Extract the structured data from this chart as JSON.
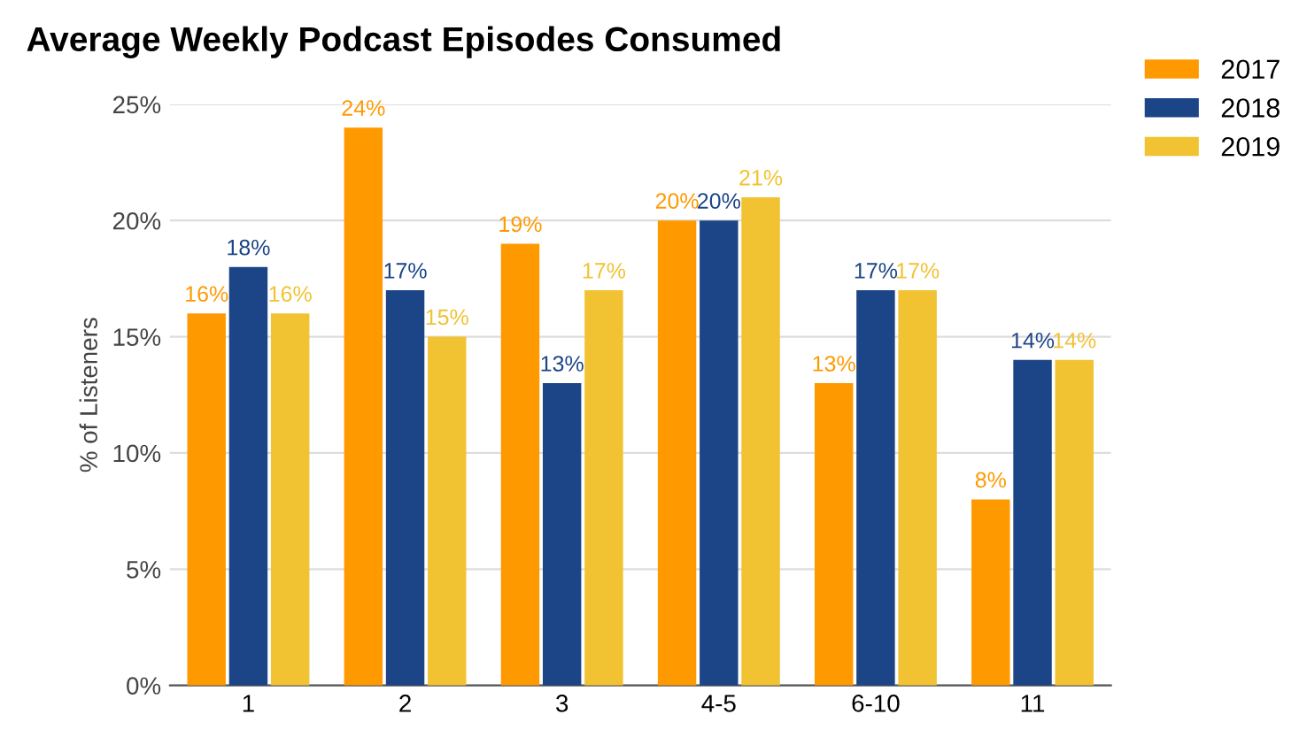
{
  "chart_data": {
    "type": "bar",
    "title": "Average Weekly Podcast Episodes Consumed",
    "ylabel": "% of Listeners",
    "categories": [
      "1",
      "2",
      "3",
      "4-5",
      "6-10",
      "11"
    ],
    "series": [
      {
        "name": "2017",
        "color": "#ff9900",
        "values": [
          16,
          24,
          19,
          20,
          13,
          8
        ],
        "value_labels": [
          "16%",
          "24%",
          "19%",
          "20%",
          "13%",
          "8%"
        ]
      },
      {
        "name": "2018",
        "color": "#1c4587",
        "values": [
          18,
          17,
          13,
          20,
          17,
          14
        ],
        "value_labels": [
          "18%",
          "17%",
          "13%",
          "20%",
          "17%",
          "14%"
        ]
      },
      {
        "name": "2019",
        "color": "#f1c232",
        "values": [
          16,
          15,
          17,
          21,
          17,
          14
        ],
        "value_labels": [
          "16%",
          "15%",
          "17%",
          "21%",
          "17%",
          "14%"
        ]
      }
    ],
    "ylim": [
      0,
      25
    ],
    "yticks": [
      {
        "value": 0,
        "label": "0%"
      },
      {
        "value": 5,
        "label": "5%"
      },
      {
        "value": 10,
        "label": "10%"
      },
      {
        "value": 15,
        "label": "15%"
      },
      {
        "value": 20,
        "label": "20%"
      },
      {
        "value": 25,
        "label": "25%"
      }
    ],
    "grid": "y",
    "legend": "right"
  }
}
